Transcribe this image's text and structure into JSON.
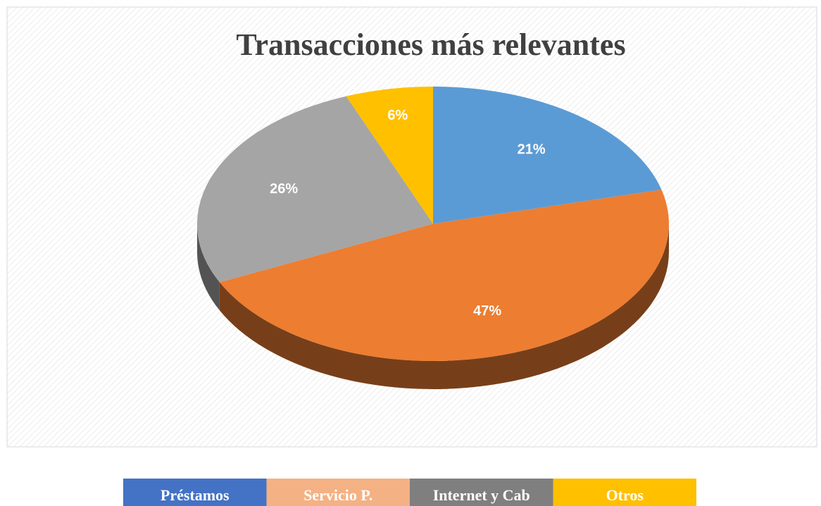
{
  "chart_data": {
    "type": "pie",
    "title": "Transacciones más relevantes",
    "categories": [
      "Préstamos",
      "Servicio P.",
      "Internet y Cab",
      "Otros"
    ],
    "values": [
      21,
      47,
      26,
      6
    ],
    "value_labels": [
      "21%",
      "47%",
      "26%",
      "6%"
    ],
    "colors": [
      "#5b9bd5",
      "#ed7d31",
      "#a5a5a5",
      "#ffc000"
    ],
    "legend_colors": [
      "#4472c4",
      "#f4b183",
      "#7f7f7f",
      "#ffc000"
    ]
  }
}
